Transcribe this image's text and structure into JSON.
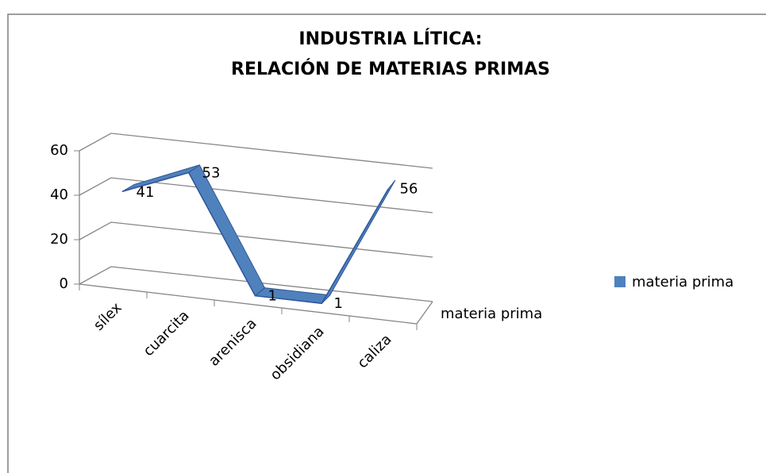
{
  "chart_data": {
    "type": "line3d",
    "title_lines": [
      "INDUSTRIA LÍTICA:",
      "RELACIÓN DE MATERIAS PRIMAS"
    ],
    "categories": [
      "sílex",
      "cuarcita",
      "arenisca",
      "obsidiana",
      "caliza"
    ],
    "series": [
      {
        "name": "materia prima",
        "color": "#4f81bd",
        "values": [
          41,
          53,
          1,
          1,
          56
        ]
      }
    ],
    "depth_axis_label": "materia prima",
    "ylim": [
      0,
      60
    ],
    "yticks": [
      0,
      20,
      40,
      60
    ],
    "grid": true,
    "legend": "right"
  }
}
